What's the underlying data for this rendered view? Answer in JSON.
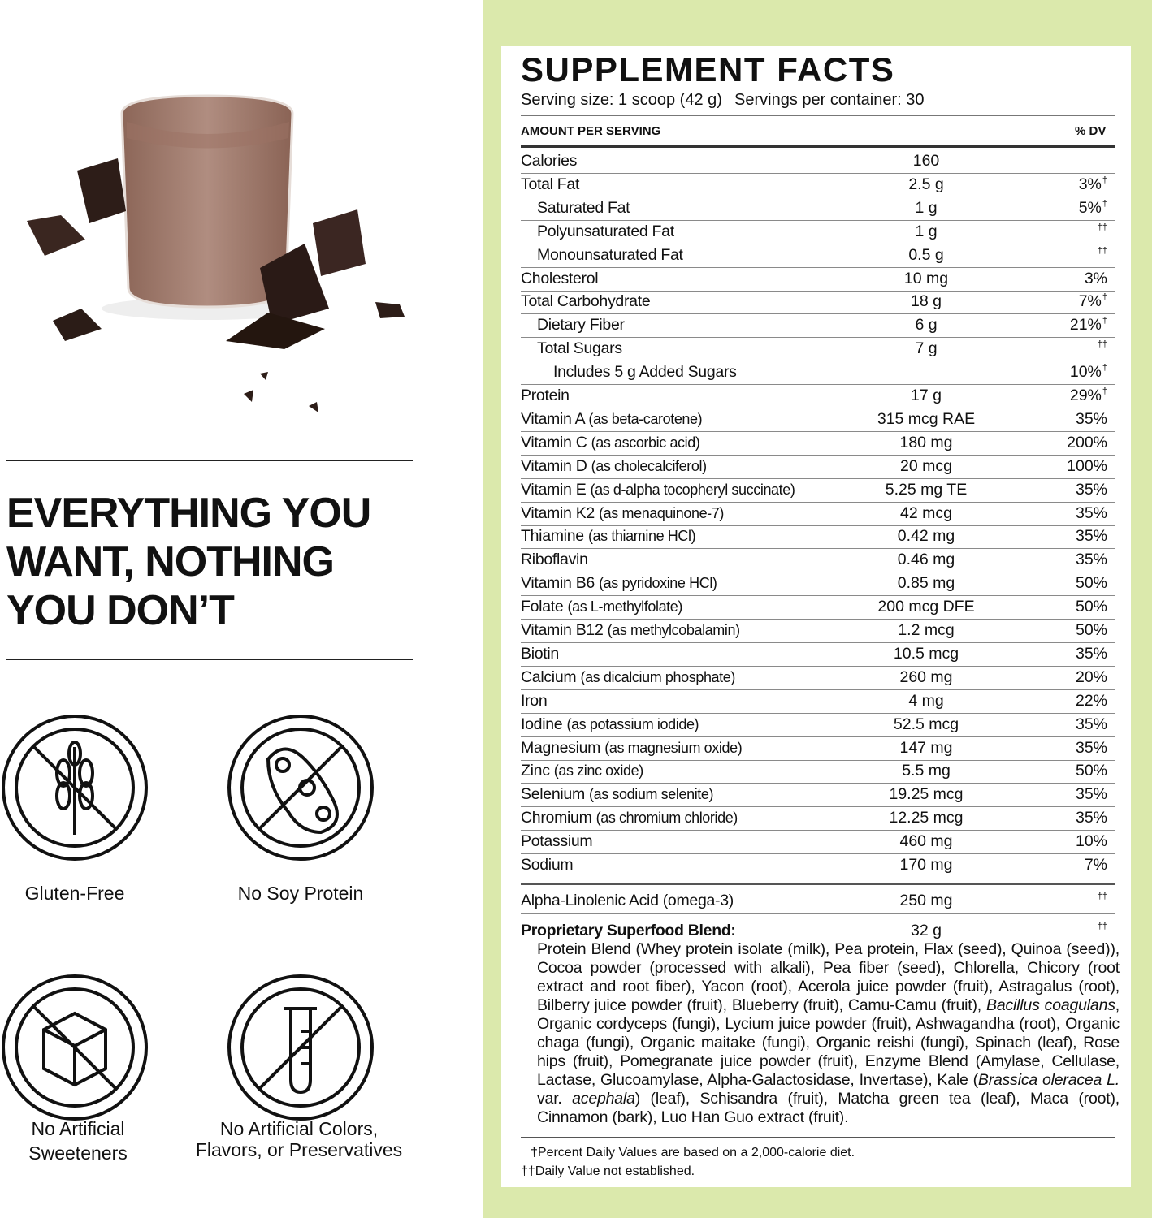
{
  "headline": {
    "lines": [
      "EVERYTHING YOU",
      "WANT, NOTHING",
      "YOU DON’T"
    ]
  },
  "badges": [
    {
      "lines": [
        "Gluten-Free"
      ]
    },
    {
      "lines": [
        "No Soy Protein"
      ]
    },
    {
      "lines": [
        "No Artificial",
        "Sweeteners"
      ]
    },
    {
      "lines": [
        "No Artificial Colors,",
        "Flavors, or Preservatives"
      ]
    }
  ],
  "facts": {
    "title": "SUPPLEMENT FACTS",
    "serving_size": "Serving size: 1 scoop (42 g)",
    "servings": "Servings per container: 30",
    "amount_header": "AMOUNT PER SERVING",
    "dv_header": "% DV",
    "rows": [
      {
        "name": "Calories",
        "amount": "160"
      },
      {
        "name": "Total Fat",
        "amount": "2.5 g",
        "dv": "3%",
        "mark": "†"
      },
      {
        "name": "Saturated Fat",
        "level": 1,
        "amount": "1 g",
        "dv": "5%",
        "mark": "†"
      },
      {
        "name": "Polyunsaturated Fat",
        "level": 1,
        "amount": "1 g",
        "mark": "††"
      },
      {
        "name": "Monounsaturated Fat",
        "level": 1,
        "amount": "0.5 g",
        "mark": "††"
      },
      {
        "name": "Cholesterol",
        "amount": "10 mg",
        "dv": "3%"
      },
      {
        "name": "Total Carbohydrate",
        "amount": "18 g",
        "dv": "7%",
        "mark": "†"
      },
      {
        "name": "Dietary Fiber",
        "level": 1,
        "amount": "6 g",
        "dv": "21%",
        "mark": "†"
      },
      {
        "name": "Total Sugars",
        "level": 1,
        "amount": "7 g",
        "mark": "††"
      },
      {
        "name": "Includes 5 g Added Sugars",
        "level": 2,
        "dv": "10%",
        "mark": "†"
      },
      {
        "name": "Protein",
        "amount": "17 g",
        "dv": "29%",
        "mark": "†"
      },
      {
        "name": "Vitamin A",
        "note": "(as beta-carotene)",
        "amount": "315 mcg RAE",
        "dv": "35%"
      },
      {
        "name": "Vitamin C",
        "note": "(as ascorbic acid)",
        "amount": "180 mg",
        "dv": "200%"
      },
      {
        "name": "Vitamin D",
        "note": "(as cholecalciferol)",
        "amount": "20 mcg",
        "dv": "100%"
      },
      {
        "name": "Vitamin E",
        "note": "(as d-alpha tocopheryl succinate)",
        "amount": "5.25 mg TE",
        "dv": "35%"
      },
      {
        "name": "Vitamin K2",
        "note": "(as menaquinone-7)",
        "amount": "42 mcg",
        "dv": "35%"
      },
      {
        "name": "Thiamine",
        "note": "(as thiamine HCl)",
        "amount": "0.42 mg",
        "dv": "35%"
      },
      {
        "name": "Riboflavin",
        "amount": "0.46 mg",
        "dv": "35%"
      },
      {
        "name": "Vitamin B6",
        "note": "(as pyridoxine HCl)",
        "amount": "0.85 mg",
        "dv": "50%"
      },
      {
        "name": "Folate",
        "note": "(as L-methylfolate)",
        "amount": "200 mcg DFE",
        "dv": "50%"
      },
      {
        "name": "Vitamin B12",
        "note": "(as methylcobalamin)",
        "amount": "1.2 mcg",
        "dv": "50%"
      },
      {
        "name": "Biotin",
        "amount": "10.5 mcg",
        "dv": "35%"
      },
      {
        "name": "Calcium",
        "note": "(as dicalcium phosphate)",
        "amount": "260 mg",
        "dv": "20%"
      },
      {
        "name": "Iron",
        "amount": "4 mg",
        "dv": "22%"
      },
      {
        "name": "Iodine",
        "note": "(as potassium iodide)",
        "amount": "52.5 mcg",
        "dv": "35%"
      },
      {
        "name": "Magnesium",
        "note": "(as magnesium oxide)",
        "amount": "147 mg",
        "dv": "35%"
      },
      {
        "name": "Zinc",
        "note": "(as zinc oxide)",
        "amount": "5.5 mg",
        "dv": "50%"
      },
      {
        "name": "Selenium",
        "note": "(as sodium selenite)",
        "amount": "19.25 mcg",
        "dv": "35%"
      },
      {
        "name": "Chromium",
        "note": "(as chromium chloride)",
        "amount": "12.25 mcg",
        "dv": "35%"
      },
      {
        "name": "Potassium",
        "amount": "460 mg",
        "dv": "10%"
      },
      {
        "name": "Sodium",
        "amount": "170 mg",
        "dv": "7%"
      }
    ],
    "omega": {
      "name": "Alpha-Linolenic Acid (omega-3)",
      "amount": "250 mg",
      "mark": "††"
    },
    "blend": {
      "name": "Proprietary Superfood Blend:",
      "amount": "32 g",
      "mark": "††",
      "segments": [
        {
          "text": "Protein Blend (Whey protein isolate (milk), Pea protein, Flax (seed), Quinoa (seed)), Cocoa powder (processed with alkali), Pea fiber (seed), Chlorella, Chicory (root extract and root fiber), Yacon (root), Acerola juice powder (fruit), Astragalus (root), Bilberry juice powder (fruit), Blueberry (fruit), Camu-Camu (fruit), "
        },
        {
          "text": "Bacillus coagulans",
          "italic": true
        },
        {
          "text": ", Organic cordyceps (fungi), Lycium juice powder (fruit), Ashwagandha (root), Organic chaga (fungi), Organic maitake (fungi), Organic reishi (fungi), Spinach (leaf), Rose hips (fruit), Pomegranate juice powder (fruit), Enzyme Blend (Amylase, Cellulase, Lactase, Glucoamylase, Alpha-Galactosidase, Invertase), Kale ("
        },
        {
          "text": "Brassica oleracea L.",
          "italic": true
        },
        {
          "text": " var. "
        },
        {
          "text": "acephala",
          "italic": true
        },
        {
          "text": ") (leaf), Schisandra (fruit), Matcha green tea (leaf), Maca (root), Cinnamon (bark), Luo Han Guo extract (fruit)."
        }
      ]
    },
    "footnotes": [
      "†Percent Daily Values are based on a 2,000-calorie diet.",
      "††Daily Value not established."
    ]
  }
}
